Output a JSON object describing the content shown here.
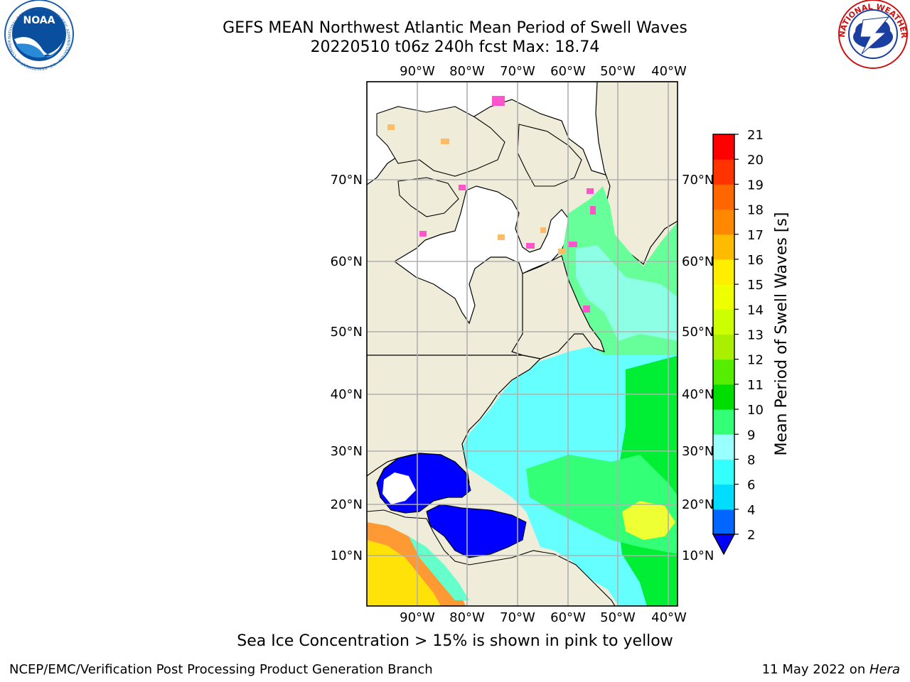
{
  "header": {
    "title_line1": "GEFS MEAN Northwest Atlantic Mean Period of Swell Waves",
    "title_line2": "20220510 t06z 240h fcst   Max: 18.74"
  },
  "logos": {
    "left": {
      "name": "NOAA",
      "text": "NOAA",
      "ring_text": "NATIONAL OCEANIC AND ATMOSPHERIC ADMINISTRATION · U.S. DEPARTMENT OF COMMERCE"
    },
    "right": {
      "name": "National Weather Service",
      "ring_text": "NATIONAL WEATHER SERVICE"
    }
  },
  "map": {
    "top_lon_labels": [
      "90°W",
      "80°W",
      "70°W",
      "60°W",
      "50°W",
      "40°W"
    ],
    "bottom_lon_labels": [
      "90°W",
      "80°W",
      "70°W",
      "60°W",
      "50°W",
      "40°W"
    ],
    "left_lat_labels": [
      "70°N",
      "60°N",
      "50°N",
      "40°N",
      "30°N",
      "20°N",
      "10°N"
    ],
    "right_lat_labels": [
      "70°N",
      "60°N",
      "50°N",
      "40°N",
      "30°N",
      "20°N",
      "10°N"
    ]
  },
  "colorbar": {
    "label": "Mean Period of Swell Waves [s]",
    "ticks": [
      "2",
      "4",
      "6",
      "8",
      "9",
      "10",
      "11",
      "12",
      "13",
      "14",
      "15",
      "16",
      "17",
      "18",
      "19",
      "20",
      "21"
    ],
    "colors": [
      "#0066ff",
      "#00ddff",
      "#33ffff",
      "#99ffff",
      "#33ff77",
      "#00dd00",
      "#55ee00",
      "#aaee00",
      "#ccff00",
      "#eeff00",
      "#ffee00",
      "#ffbb00",
      "#ff8800",
      "#ff6600",
      "#ff3300",
      "#ff0000"
    ],
    "under_color": "#0000ff"
  },
  "caption": "Sea Ice Concentration > 15% is shown in pink to yellow",
  "footer": {
    "left": "NCEP/EMC/Verification Post Processing Product Generation Branch",
    "right_text": "11 May 2022 on ",
    "right_host": "Hera"
  }
}
